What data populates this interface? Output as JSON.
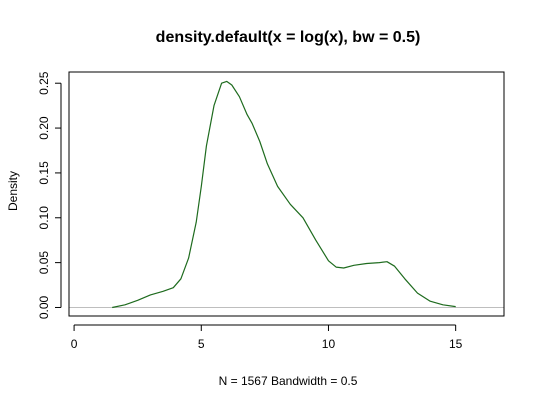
{
  "chart_data": {
    "type": "line",
    "title": "density.default(x = log(x), bw = 0.5)",
    "xlabel": "N = 1567   Bandwidth = 0.5",
    "ylabel": "Density",
    "xlim": [
      -0.2,
      16.9
    ],
    "ylim": [
      -0.0095,
      0.2625
    ],
    "xticks": [
      0,
      5,
      10,
      15
    ],
    "yticks": [
      0.0,
      0.05,
      0.1,
      0.15,
      0.2,
      0.25
    ],
    "ytick_labels": [
      "0.00",
      "0.05",
      "0.10",
      "0.15",
      "0.20",
      "0.25"
    ],
    "grid": false,
    "baseline": 0,
    "colors": {
      "line": "#1e6b1e",
      "baseline": "#bebebe",
      "frame": "#000000"
    },
    "series": [
      {
        "x": [
          1.5,
          2.0,
          2.5,
          3.0,
          3.5,
          3.9,
          4.2,
          4.5,
          4.8,
          5.0,
          5.2,
          5.5,
          5.8,
          6.0,
          6.2,
          6.5,
          6.8,
          7.0,
          7.3,
          7.6,
          8.0,
          8.5,
          9.0,
          9.5,
          10.0,
          10.3,
          10.6,
          11.0,
          11.5,
          12.0,
          12.3,
          12.6,
          13.0,
          13.5,
          14.0,
          14.5,
          15.0
        ],
        "y": [
          0.0,
          0.003,
          0.008,
          0.014,
          0.018,
          0.022,
          0.032,
          0.055,
          0.095,
          0.135,
          0.18,
          0.225,
          0.25,
          0.252,
          0.248,
          0.235,
          0.215,
          0.205,
          0.185,
          0.16,
          0.135,
          0.115,
          0.1,
          0.075,
          0.052,
          0.045,
          0.044,
          0.047,
          0.049,
          0.05,
          0.051,
          0.046,
          0.032,
          0.016,
          0.007,
          0.003,
          0.001
        ]
      }
    ]
  }
}
